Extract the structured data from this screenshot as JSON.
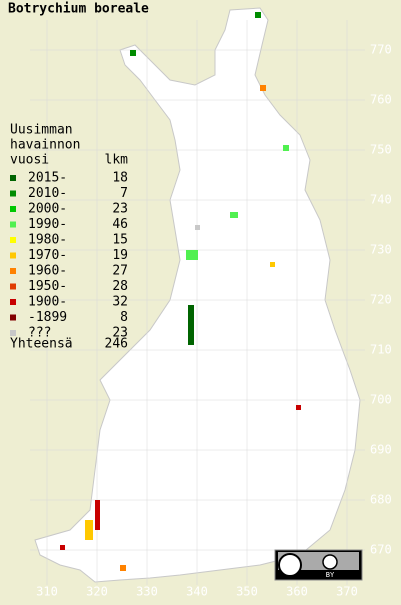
{
  "title": "Botrychium boreale",
  "legend": {
    "heading": [
      "Uusimman",
      "havainnon",
      "vuosi"
    ],
    "count_heading": "lkm",
    "rows": [
      {
        "label": "2015-",
        "count": 18,
        "color": "#006400"
      },
      {
        "label": "2010-",
        "count": 7,
        "color": "#008c00"
      },
      {
        "label": "2000-",
        "count": 23,
        "color": "#00c800"
      },
      {
        "label": "1990-",
        "count": 46,
        "color": "#50f050"
      },
      {
        "label": "1980-",
        "count": 15,
        "color": "#ffff00"
      },
      {
        "label": "1970-",
        "count": 19,
        "color": "#ffc800"
      },
      {
        "label": "1960-",
        "count": 27,
        "color": "#ff8200"
      },
      {
        "label": "1950-",
        "count": 28,
        "color": "#e03c00"
      },
      {
        "label": "1900-",
        "count": 32,
        "color": "#c80000"
      },
      {
        "label": "-1899",
        "count": 8,
        "color": "#820000"
      },
      {
        "label": "???",
        "count": 23,
        "color": "#c8c8c8"
      }
    ],
    "total_label": "Yhteensä",
    "total": 246
  },
  "x_axis": [
    310,
    320,
    330,
    340,
    350,
    360,
    370
  ],
  "y_axis": [
    670,
    680,
    690,
    700,
    710,
    720,
    730,
    740,
    750,
    760,
    770
  ],
  "license": "BY"
}
